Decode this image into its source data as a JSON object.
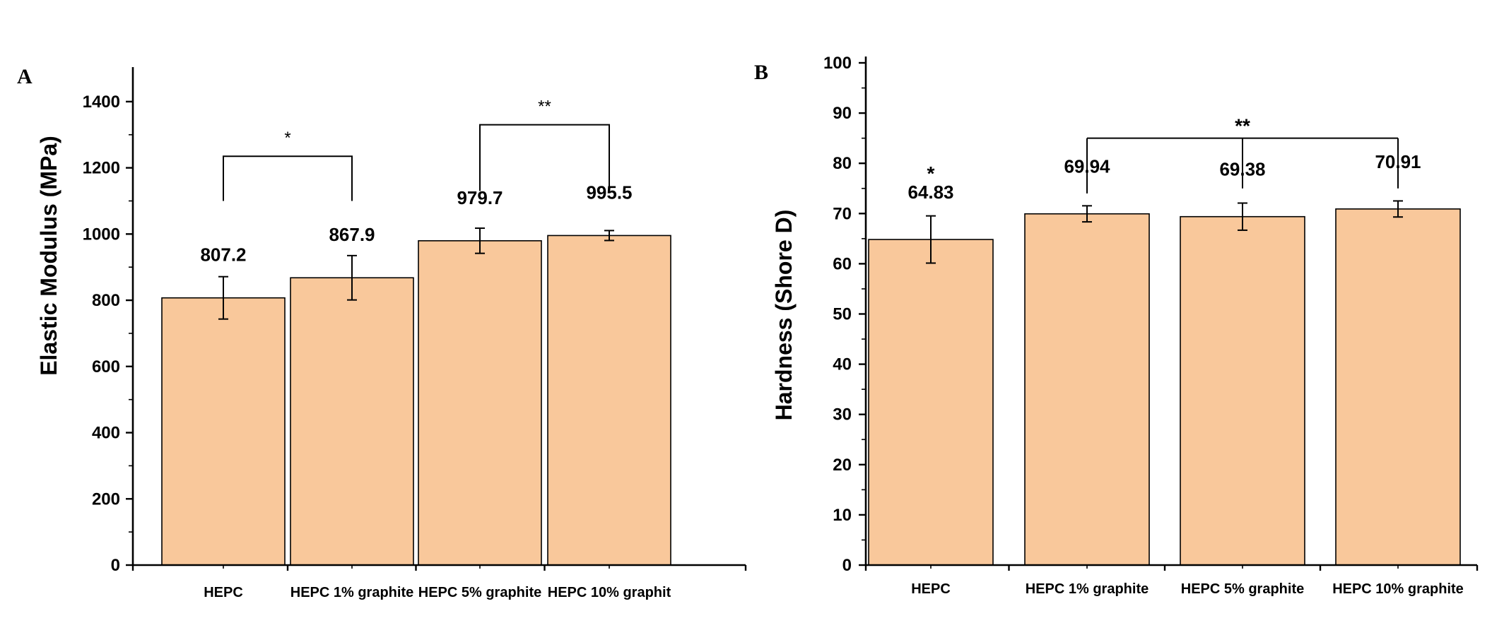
{
  "chart_data": [
    {
      "panel": "A",
      "type": "bar",
      "title": "",
      "xlabel": "",
      "ylabel": "Elastic Modulus (MPa)",
      "categories": [
        "HEPC",
        "HEPC 1% graphite",
        "HEPC 5% graphite",
        "HEPC 10% graphit"
      ],
      "values": [
        807.2,
        867.9,
        979.7,
        995.5
      ],
      "value_labels": [
        "807.2",
        "867.9",
        "979.7",
        "995.5"
      ],
      "errors": [
        64,
        67,
        38,
        15
      ],
      "ylim": [
        0,
        1500
      ],
      "yticks": [
        0,
        200,
        400,
        600,
        800,
        1000,
        1200,
        1400
      ],
      "bar_color": "#f9c89b",
      "significance": [
        {
          "from": 0,
          "to": 1,
          "label": "*",
          "level": 1235,
          "legs": [
            1100,
            1100
          ]
        },
        {
          "from": 2,
          "to": 3,
          "label": "**",
          "level": 1330,
          "legs": [
            1130,
            1130
          ]
        }
      ]
    },
    {
      "panel": "B",
      "type": "bar",
      "title": "",
      "xlabel": "",
      "ylabel": "Hardness (Shore D)",
      "categories": [
        "HEPC",
        "HEPC 1% graphite",
        "HEPC 5% graphite",
        "HEPC 10% graphite"
      ],
      "values": [
        64.83,
        69.94,
        69.38,
        70.91
      ],
      "value_labels": [
        "64.83",
        "69.94",
        "69.38",
        "70.91"
      ],
      "errors": [
        4.7,
        1.6,
        2.7,
        1.6
      ],
      "ylim": [
        0,
        100
      ],
      "yticks": [
        0,
        10,
        20,
        30,
        40,
        50,
        60,
        70,
        80,
        90,
        100
      ],
      "bar_color": "#f9c89b",
      "top_star": {
        "index": 0,
        "label": "*"
      },
      "significance_multi": {
        "indices": [
          1,
          2,
          3
        ],
        "label": "**",
        "level": 85,
        "legs": [
          74,
          75,
          75
        ]
      }
    }
  ]
}
